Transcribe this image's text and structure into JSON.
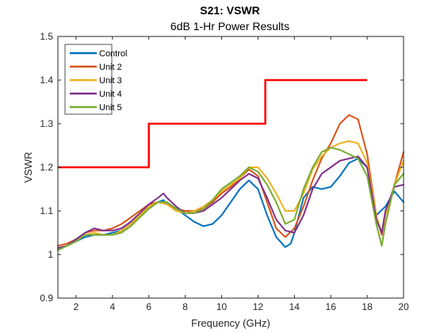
{
  "chart_data": {
    "type": "line",
    "title": "S21: VSWR",
    "subtitle": "6dB 1-Hr Power Results",
    "xlabel": "Frequency (GHz)",
    "ylabel": "VSWR",
    "xlim": [
      1,
      20
    ],
    "ylim": [
      0.9,
      1.5
    ],
    "xticks": [
      2,
      4,
      6,
      8,
      10,
      12,
      14,
      16,
      18,
      20
    ],
    "yticks": [
      0.9,
      1,
      1.1,
      1.2,
      1.3,
      1.4,
      1.5
    ],
    "grid": false,
    "legend_position": "top-left",
    "limit_line": {
      "color": "#ff0000",
      "x": [
        1,
        6,
        6,
        12.4,
        12.4,
        18
      ],
      "y": [
        1.2,
        1.2,
        1.3,
        1.3,
        1.4,
        1.4
      ]
    },
    "series": [
      {
        "name": "Control",
        "color": "#0072bd",
        "x": [
          1,
          1.5,
          2,
          2.5,
          3,
          3.5,
          4,
          4.5,
          5,
          5.5,
          6,
          6.5,
          6.8,
          7,
          7.5,
          8,
          8.5,
          9,
          9.5,
          10,
          10.5,
          11,
          11.5,
          12,
          12.5,
          13,
          13.5,
          13.8,
          14,
          14.5,
          15,
          15.5,
          16,
          16.5,
          17,
          17.5,
          18,
          18.5,
          19,
          19.5,
          20
        ],
        "y": [
          1.01,
          1.02,
          1.03,
          1.04,
          1.045,
          1.045,
          1.05,
          1.055,
          1.07,
          1.09,
          1.105,
          1.12,
          1.125,
          1.115,
          1.105,
          1.09,
          1.075,
          1.065,
          1.07,
          1.09,
          1.12,
          1.15,
          1.17,
          1.15,
          1.09,
          1.04,
          1.017,
          1.025,
          1.05,
          1.13,
          1.155,
          1.15,
          1.155,
          1.18,
          1.21,
          1.22,
          1.2,
          1.09,
          1.11,
          1.145,
          1.12
        ]
      },
      {
        "name": "Unit 2",
        "color": "#d95319",
        "x": [
          1,
          1.5,
          2,
          2.5,
          3,
          3.5,
          4,
          4.5,
          5,
          5.5,
          6,
          6.5,
          7,
          7.5,
          8,
          8.5,
          9,
          9.5,
          10,
          10.5,
          11,
          11.5,
          12,
          12.5,
          13,
          13.5,
          14,
          14.5,
          15,
          15.5,
          16,
          16.5,
          17,
          17.5,
          18,
          18.5,
          18.8,
          19,
          19.5,
          20
        ],
        "y": [
          1.02,
          1.025,
          1.035,
          1.05,
          1.055,
          1.055,
          1.06,
          1.07,
          1.085,
          1.1,
          1.115,
          1.12,
          1.12,
          1.105,
          1.1,
          1.1,
          1.105,
          1.12,
          1.14,
          1.155,
          1.175,
          1.195,
          1.18,
          1.12,
          1.06,
          1.04,
          1.06,
          1.11,
          1.17,
          1.22,
          1.255,
          1.3,
          1.32,
          1.31,
          1.23,
          1.09,
          1.045,
          1.09,
          1.16,
          1.235
        ]
      },
      {
        "name": "Unit 3",
        "color": "#edb120",
        "x": [
          1,
          1.5,
          2,
          2.5,
          3,
          3.5,
          4,
          4.5,
          5,
          5.5,
          6,
          6.5,
          7,
          7.5,
          8,
          8.5,
          9,
          9.5,
          10,
          10.5,
          11,
          11.5,
          12,
          12.5,
          13,
          13.5,
          14,
          14.5,
          15,
          15.5,
          16,
          16.5,
          17,
          17.5,
          18,
          18.5,
          18.8,
          19,
          19.5,
          20
        ],
        "y": [
          1.015,
          1.02,
          1.03,
          1.045,
          1.05,
          1.045,
          1.045,
          1.055,
          1.07,
          1.09,
          1.11,
          1.12,
          1.115,
          1.1,
          1.095,
          1.1,
          1.11,
          1.125,
          1.145,
          1.16,
          1.175,
          1.2,
          1.2,
          1.175,
          1.14,
          1.1,
          1.1,
          1.14,
          1.195,
          1.225,
          1.245,
          1.255,
          1.26,
          1.255,
          1.21,
          1.09,
          1.05,
          1.09,
          1.16,
          1.215
        ]
      },
      {
        "name": "Unit 4",
        "color": "#7e2f8e",
        "x": [
          1,
          1.5,
          2,
          2.5,
          3,
          3.5,
          4,
          4.5,
          5,
          5.5,
          6,
          6.5,
          6.8,
          7,
          7.5,
          8,
          8.5,
          9,
          9.5,
          10,
          10.5,
          11,
          11.5,
          12,
          12.5,
          13,
          13.5,
          14,
          14.5,
          15,
          15.5,
          16,
          16.5,
          17,
          17.5,
          18,
          18.5,
          18.8,
          19,
          19.5,
          20
        ],
        "y": [
          1.015,
          1.02,
          1.035,
          1.05,
          1.06,
          1.055,
          1.055,
          1.06,
          1.075,
          1.095,
          1.115,
          1.13,
          1.14,
          1.13,
          1.11,
          1.095,
          1.095,
          1.1,
          1.115,
          1.13,
          1.15,
          1.17,
          1.185,
          1.175,
          1.13,
          1.08,
          1.055,
          1.05,
          1.09,
          1.15,
          1.185,
          1.2,
          1.215,
          1.22,
          1.225,
          1.2,
          1.08,
          1.05,
          1.1,
          1.155,
          1.16
        ]
      },
      {
        "name": "Unit 5",
        "color": "#77ac30",
        "x": [
          1,
          1.5,
          2,
          2.5,
          3,
          3.5,
          4,
          4.5,
          5,
          5.5,
          6,
          6.5,
          7,
          7.5,
          8,
          8.5,
          9,
          9.5,
          10,
          10.5,
          11,
          11.5,
          12,
          12.5,
          13,
          13.5,
          14,
          14.5,
          15,
          15.5,
          16,
          16.5,
          17,
          17.5,
          18,
          18.5,
          18.8,
          19,
          19.5,
          20
        ],
        "y": [
          1.01,
          1.02,
          1.03,
          1.045,
          1.045,
          1.045,
          1.045,
          1.05,
          1.065,
          1.085,
          1.105,
          1.12,
          1.12,
          1.105,
          1.095,
          1.095,
          1.105,
          1.125,
          1.15,
          1.165,
          1.18,
          1.2,
          1.19,
          1.16,
          1.12,
          1.07,
          1.08,
          1.15,
          1.2,
          1.235,
          1.245,
          1.24,
          1.23,
          1.22,
          1.18,
          1.07,
          1.02,
          1.07,
          1.16,
          1.185
        ]
      }
    ]
  }
}
